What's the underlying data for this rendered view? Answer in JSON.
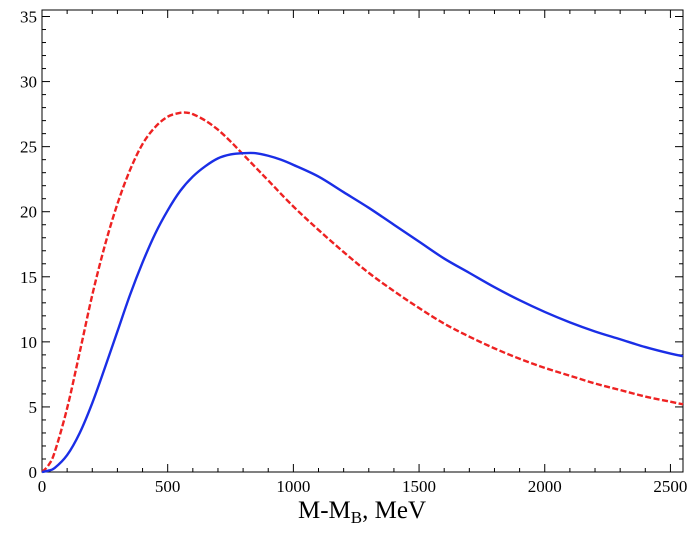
{
  "chart_data": {
    "type": "line",
    "title": "",
    "xlabel": {
      "main": "M-M",
      "subscript": "B",
      "suffix": ", MeV"
    },
    "ylabel": "",
    "xlim": [
      0,
      2550
    ],
    "ylim": [
      0,
      35.5
    ],
    "xticks": [
      0,
      500,
      1000,
      1500,
      2000,
      2500
    ],
    "yticks": [
      0,
      5,
      10,
      15,
      20,
      25,
      30,
      35
    ],
    "grid": false,
    "legend": "none",
    "series": [
      {
        "color": "#ee2222",
        "style": "dashed",
        "x": [
          0,
          25,
          50,
          100,
          150,
          200,
          250,
          300,
          350,
          400,
          450,
          500,
          550,
          580,
          600,
          650,
          700,
          750,
          800,
          850,
          900,
          1000,
          1100,
          1200,
          1300,
          1400,
          1500,
          1600,
          1700,
          1800,
          1900,
          2000,
          2100,
          2200,
          2300,
          2400,
          2500,
          2550
        ],
        "y": [
          0,
          0.5,
          1.5,
          4.9,
          9.2,
          13.6,
          17.4,
          20.6,
          23.2,
          25.2,
          26.5,
          27.3,
          27.6,
          27.6,
          27.5,
          27.0,
          26.3,
          25.4,
          24.4,
          23.4,
          22.4,
          20.4,
          18.6,
          16.9,
          15.3,
          13.9,
          12.6,
          11.4,
          10.4,
          9.5,
          8.7,
          8.0,
          7.4,
          6.8,
          6.3,
          5.8,
          5.4,
          5.2
        ]
      },
      {
        "color": "#1a2ee6",
        "style": "solid",
        "x": [
          0,
          25,
          50,
          100,
          150,
          200,
          250,
          300,
          350,
          400,
          450,
          500,
          550,
          600,
          650,
          700,
          750,
          800,
          850,
          900,
          950,
          1000,
          1100,
          1200,
          1300,
          1400,
          1500,
          1600,
          1700,
          1800,
          1900,
          2000,
          2100,
          2200,
          2300,
          2400,
          2500,
          2550
        ],
        "y": [
          0,
          0.1,
          0.3,
          1.3,
          3.0,
          5.3,
          8.0,
          10.8,
          13.6,
          16.1,
          18.3,
          20.1,
          21.6,
          22.7,
          23.5,
          24.1,
          24.4,
          24.5,
          24.5,
          24.3,
          24.0,
          23.6,
          22.7,
          21.5,
          20.3,
          19.0,
          17.7,
          16.4,
          15.3,
          14.2,
          13.2,
          12.3,
          11.5,
          10.8,
          10.2,
          9.6,
          9.1,
          8.9
        ]
      }
    ]
  }
}
